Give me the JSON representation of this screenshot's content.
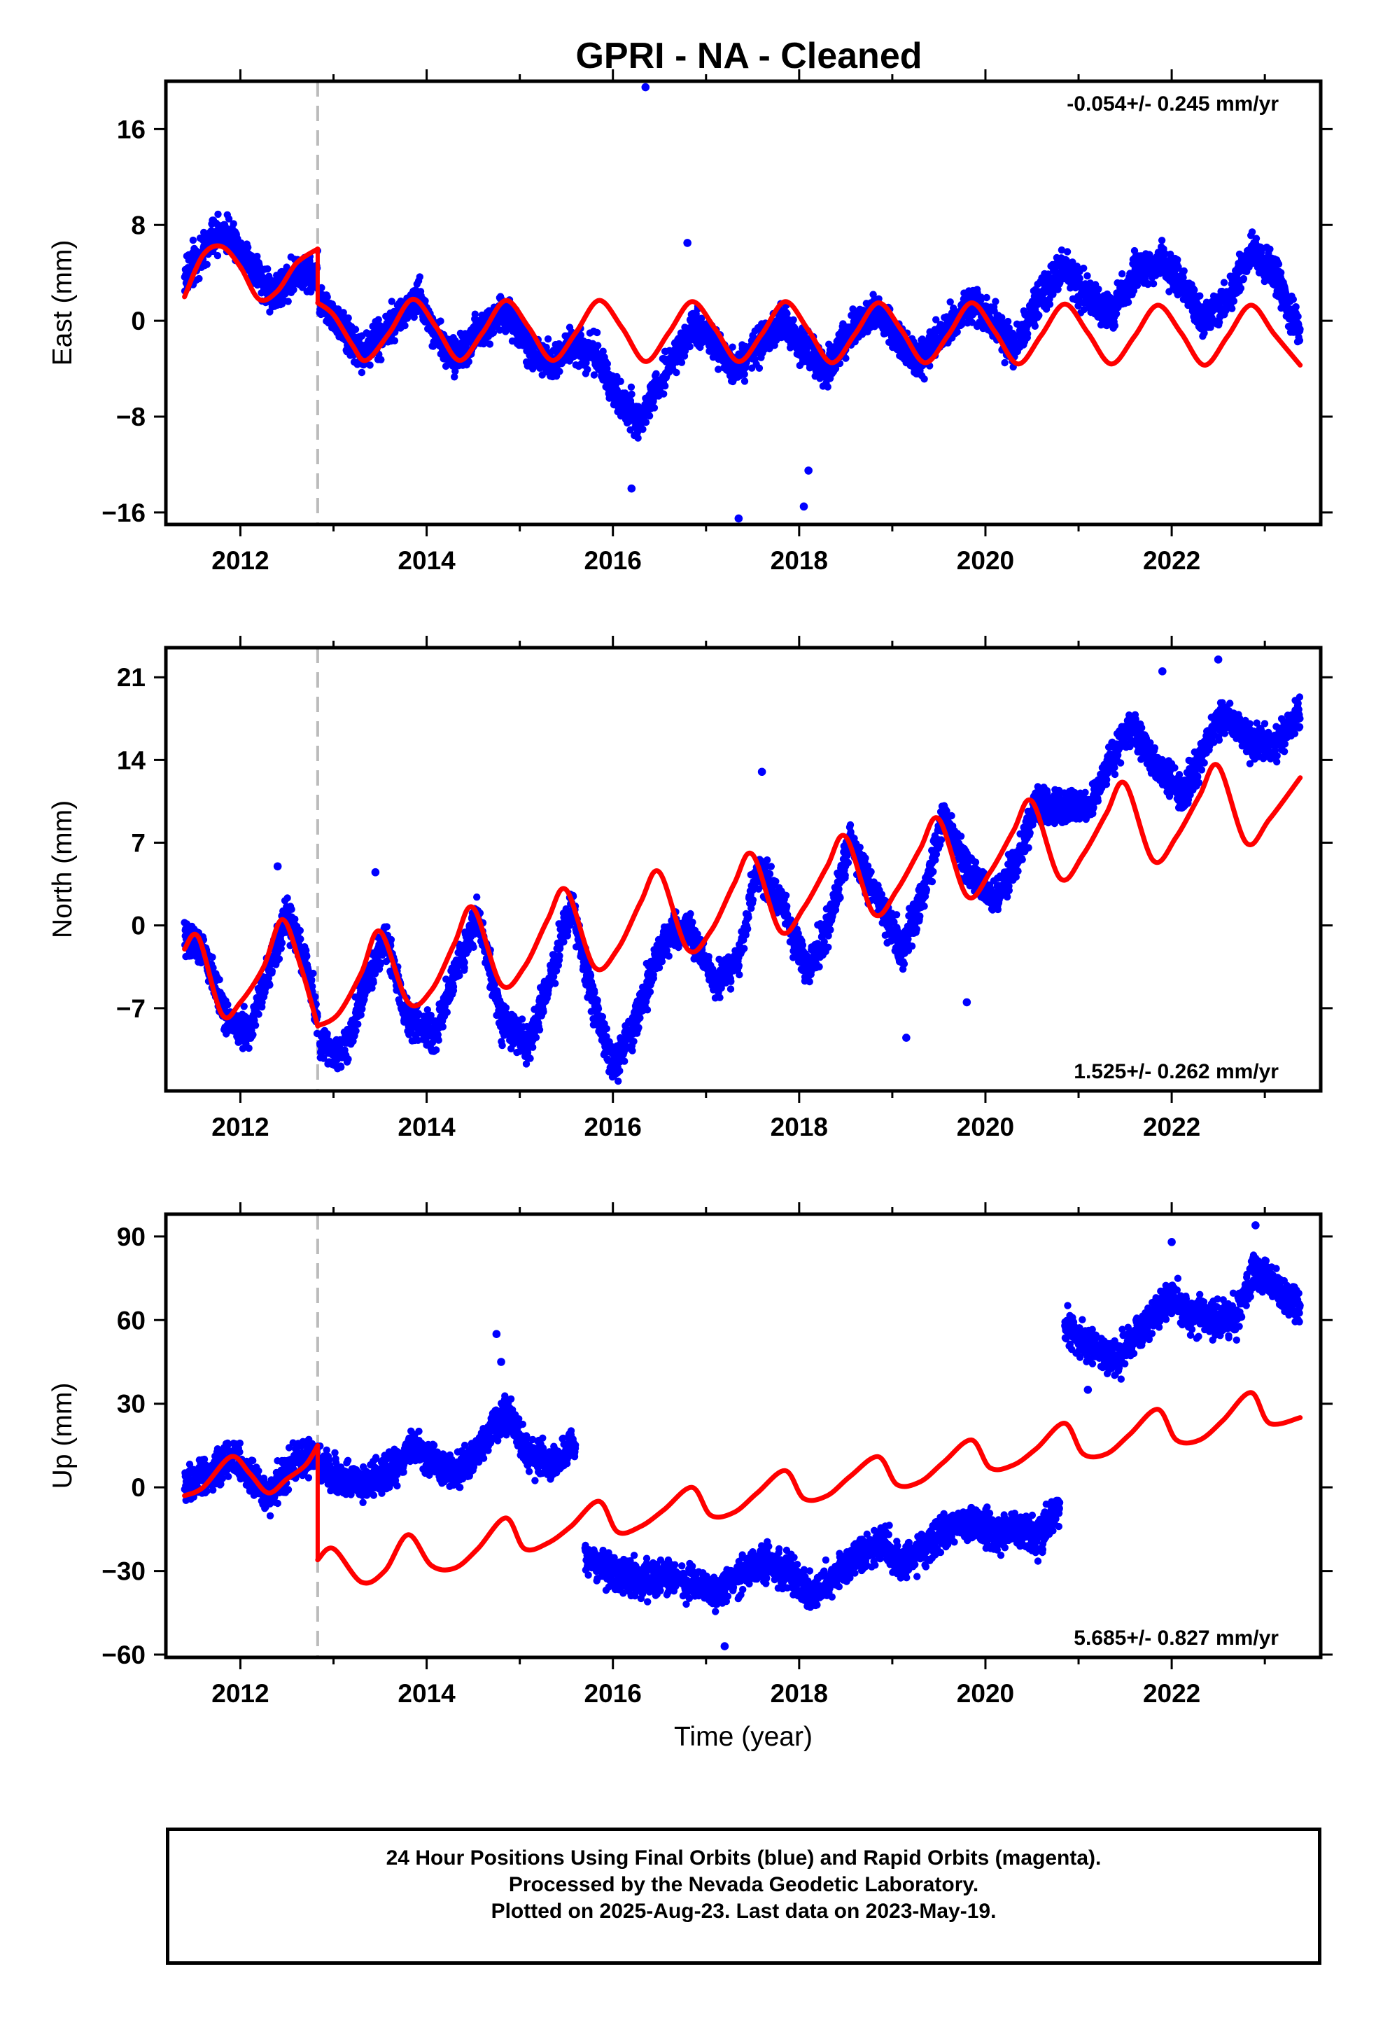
{
  "title": "GPRI  - NA - Cleaned",
  "footer": {
    "line1": "24 Hour Positions Using Final Orbits (blue) and Rapid Orbits (magenta).",
    "line2": "Processed by the Nevada Geodetic Laboratory.",
    "line3": "Plotted on 2025-Aug-23. Last data on 2023-May-19."
  },
  "colors": {
    "data": "#0000ff",
    "model": "#ff0000",
    "offset": "#bbbbbb"
  },
  "chart_data": [
    {
      "type": "scatter",
      "ylabel": "East (mm)",
      "rate_text": "-0.054+/- 0.245 mm/yr",
      "rate_position": "top-right",
      "xlim": [
        2011.2,
        2023.6
      ],
      "ylim": [
        -17,
        20
      ],
      "yticks": [
        -16,
        -8,
        0,
        8,
        16
      ],
      "xticks": [
        2012,
        2014,
        2016,
        2018,
        2020,
        2022
      ],
      "offset_x": 2012.83,
      "series": [
        {
          "role": "data",
          "segments": [
            {
              "x": [
                2011.4,
                2011.7,
                2011.85,
                2012.1,
                2012.35,
                2012.6,
                2012.83
              ],
              "y": [
                3.5,
                7.0,
                7.5,
                5.0,
                2.0,
                4.0,
                4.0
              ]
            },
            {
              "x": [
                2012.85,
                2013.0,
                2013.3,
                2013.6,
                2013.9,
                2014.1,
                2014.3,
                2014.6,
                2014.85,
                2015.1,
                2015.35,
                2015.6,
                2015.85,
                2016.0,
                2016.3,
                2016.5,
                2016.85,
                2017.0,
                2017.3,
                2017.55,
                2017.85,
                2018.0,
                2018.3,
                2018.55,
                2018.85,
                2019.1,
                2019.3,
                2019.55,
                2019.85,
                2020.1,
                2020.3,
                2020.6,
                2020.85,
                2021.1,
                2021.35,
                2021.6,
                2021.85,
                2022.1,
                2022.35,
                2022.6,
                2022.85,
                2023.1,
                2023.38
              ],
              "y": [
                1.5,
                0.5,
                -3.0,
                -0.5,
                2.0,
                -1.0,
                -3.0,
                -0.5,
                1.0,
                -2.5,
                -3.5,
                -2.0,
                -3.0,
                -6.0,
                -8.5,
                -5.0,
                -0.5,
                -1.0,
                -4.0,
                -2.0,
                0.0,
                -2.0,
                -4.0,
                -1.0,
                1.0,
                -2.0,
                -3.5,
                -1.0,
                1.5,
                0.0,
                -2.5,
                2.0,
                4.5,
                2.0,
                0.5,
                4.0,
                5.0,
                3.5,
                0.0,
                2.0,
                6.0,
                4.0,
                -1.0
              ]
            }
          ],
          "outliers": {
            "x": [
              2016.35,
              2016.8,
              2017.35,
              2018.05,
              2018.1,
              2016.2
            ],
            "y": [
              19.5,
              6.5,
              -16.5,
              -15.5,
              -12.5,
              -14.0
            ]
          }
        },
        {
          "role": "model",
          "segments": [
            {
              "x": [
                2011.4,
                2011.6,
                2011.8,
                2012.0,
                2012.2,
                2012.4,
                2012.6,
                2012.83
              ],
              "y": [
                2.0,
                5.5,
                6.2,
                4.5,
                1.8,
                2.5,
                4.8,
                6.0
              ]
            },
            {
              "x": [
                2012.83,
                2013.0,
                2013.2,
                2013.35,
                2013.6,
                2013.85,
                2014.1,
                2014.35,
                2014.6,
                2014.85,
                2015.1,
                2015.35,
                2015.6,
                2015.85,
                2016.1,
                2016.35,
                2016.6,
                2016.85,
                2017.1,
                2017.35,
                2017.6,
                2017.85,
                2018.1,
                2018.35,
                2018.6,
                2018.85,
                2019.1,
                2019.35,
                2019.6,
                2019.85,
                2020.1,
                2020.35,
                2020.6,
                2020.85,
                2021.1,
                2021.35,
                2021.6,
                2021.85,
                2022.1,
                2022.35,
                2022.6,
                2022.85,
                2023.1,
                2023.38
              ],
              "y": [
                1.5,
                0.5,
                -2.0,
                -3.3,
                -1.0,
                1.8,
                -0.5,
                -3.3,
                -1.0,
                1.7,
                -0.6,
                -3.3,
                -1.0,
                1.7,
                -0.6,
                -3.4,
                -1.0,
                1.6,
                -0.7,
                -3.4,
                -1.1,
                1.6,
                -0.8,
                -3.5,
                -1.1,
                1.5,
                -0.8,
                -3.5,
                -1.2,
                1.5,
                -0.9,
                -3.6,
                -1.2,
                1.4,
                -1.0,
                -3.6,
                -1.3,
                1.3,
                -1.0,
                -3.7,
                -1.3,
                1.3,
                -1.1,
                -3.7
              ]
            }
          ]
        }
      ]
    },
    {
      "type": "scatter",
      "ylabel": "North (mm)",
      "rate_text": "1.525+/- 0.262 mm/yr",
      "rate_position": "bottom-right",
      "xlim": [
        2011.2,
        2023.6
      ],
      "ylim": [
        -14,
        23.5
      ],
      "yticks": [
        -7,
        0,
        7,
        14,
        21
      ],
      "xticks": [
        2012,
        2014,
        2016,
        2018,
        2020,
        2022
      ],
      "offset_x": 2012.83,
      "series": [
        {
          "role": "data",
          "segments": [
            {
              "x": [
                2011.4,
                2011.6,
                2011.85,
                2012.1,
                2012.3,
                2012.5,
                2012.7,
                2012.83
              ],
              "y": [
                -1.0,
                -2.0,
                -8.0,
                -9.0,
                -4.0,
                1.0,
                -3.0,
                -8.0
              ]
            },
            {
              "x": [
                2012.85,
                2013.1,
                2013.35,
                2013.55,
                2013.8,
                2014.1,
                2014.35,
                2014.55,
                2014.8,
                2015.1,
                2015.35,
                2015.55,
                2015.8,
                2016.0,
                2016.25,
                2016.55,
                2016.8,
                2017.1,
                2017.35,
                2017.55,
                2017.8,
                2018.1,
                2018.35,
                2018.55,
                2018.8,
                2019.1,
                2019.35,
                2019.55,
                2019.8,
                2020.1,
                2020.3,
                2020.55,
                2020.8,
                2021.1,
                2021.35,
                2021.55,
                2021.8,
                2022.1,
                2022.3,
                2022.55,
                2022.8,
                2023.1,
                2023.38
              ],
              "y": [
                -10.0,
                -11.0,
                -5.0,
                -1.0,
                -8.0,
                -9.0,
                -3.0,
                1.0,
                -8.0,
                -10.0,
                -4.0,
                2.0,
                -7.0,
                -12.0,
                -8.0,
                -1.0,
                0.0,
                -5.0,
                -3.0,
                5.0,
                2.0,
                -4.0,
                1.0,
                7.0,
                3.0,
                -2.0,
                3.0,
                9.0,
                5.0,
                2.0,
                5.0,
                10.0,
                10.0,
                10.0,
                14.0,
                17.0,
                14.0,
                11.0,
                14.0,
                18.0,
                16.0,
                15.0,
                18.0
              ]
            }
          ],
          "outliers": {
            "x": [
              2012.4,
              2013.45,
              2017.6,
              2019.15,
              2019.8,
              2021.9,
              2022.5
            ],
            "y": [
              5.0,
              4.5,
              13.0,
              -9.5,
              -6.5,
              21.5,
              22.5
            ]
          }
        },
        {
          "role": "model",
          "segments": [
            {
              "x": [
                2011.4,
                2011.55,
                2011.8,
                2012.0,
                2012.25,
                2012.45,
                2012.65,
                2012.83
              ],
              "y": [
                -2.0,
                -1.0,
                -7.5,
                -6.5,
                -3.5,
                0.5,
                -3.5,
                -8.5
              ]
            },
            {
              "x": [
                2012.83,
                2013.05,
                2013.3,
                2013.5,
                2013.8,
                2014.05,
                2014.3,
                2014.5,
                2014.8,
                2015.05,
                2015.3,
                2015.5,
                2015.8,
                2016.05,
                2016.3,
                2016.5,
                2016.8,
                2017.05,
                2017.3,
                2017.5,
                2017.8,
                2018.05,
                2018.3,
                2018.5,
                2018.8,
                2019.05,
                2019.3,
                2019.5,
                2019.8,
                2020.05,
                2020.3,
                2020.5,
                2020.8,
                2021.05,
                2021.3,
                2021.5,
                2021.8,
                2022.05,
                2022.3,
                2022.5,
                2022.8,
                2023.05,
                2023.38
              ],
              "y": [
                -8.5,
                -7.5,
                -4.0,
                -0.5,
                -6.5,
                -5.5,
                -1.5,
                1.5,
                -5.0,
                -3.5,
                0.5,
                3.0,
                -3.5,
                -2.0,
                2.0,
                4.5,
                -2.0,
                -0.5,
                3.5,
                6.0,
                -0.5,
                1.5,
                5.0,
                7.5,
                1.0,
                3.0,
                6.5,
                9.0,
                2.5,
                4.5,
                8.0,
                10.5,
                4.0,
                6.0,
                9.5,
                12.0,
                5.5,
                7.5,
                11.0,
                13.5,
                7.0,
                9.0,
                12.5
              ]
            }
          ]
        }
      ]
    },
    {
      "type": "scatter",
      "ylabel": "Up (mm)",
      "xlabel": "Time (year)",
      "rate_text": "5.685+/- 0.827 mm/yr",
      "rate_position": "bottom-right",
      "xlim": [
        2011.2,
        2023.6
      ],
      "ylim": [
        -61,
        98
      ],
      "yticks": [
        -60,
        -30,
        0,
        30,
        60,
        90
      ],
      "xticks": [
        2012,
        2014,
        2016,
        2018,
        2020,
        2022
      ],
      "offset_x": 2012.83,
      "series": [
        {
          "role": "data",
          "segments": [
            {
              "x": [
                2011.4,
                2011.7,
                2011.9,
                2012.1,
                2012.3,
                2012.5,
                2012.7,
                2012.83
              ],
              "y": [
                0,
                5,
                12,
                5,
                -3,
                5,
                12,
                10
              ]
            },
            {
              "x": [
                2012.85,
                2013.1,
                2013.3,
                2013.6,
                2013.85,
                2014.1,
                2014.3,
                2014.5,
                2014.7,
                2014.9,
                2015.1,
                2015.35,
                2015.6
              ],
              "y": [
                8,
                3,
                0,
                5,
                15,
                8,
                5,
                10,
                22,
                25,
                12,
                8,
                15
              ]
            },
            {
              "x": [
                2015.7,
                2016.0,
                2016.3,
                2016.6,
                2016.9,
                2017.1,
                2017.3,
                2017.6,
                2017.9,
                2018.1,
                2018.3,
                2018.6,
                2018.9,
                2019.1,
                2019.3,
                2019.6,
                2019.9,
                2020.1,
                2020.3,
                2020.55,
                2020.8
              ],
              "y": [
                -25,
                -30,
                -33,
                -32,
                -35,
                -38,
                -33,
                -26,
                -30,
                -38,
                -35,
                -25,
                -20,
                -28,
                -22,
                -15,
                -13,
                -18,
                -14,
                -18,
                -8
              ]
            },
            {
              "x": [
                2020.85,
                2021.0,
                2021.2,
                2021.4,
                2021.6,
                2021.8,
                2022.0,
                2022.2,
                2022.45,
                2022.7,
                2022.9,
                2023.1,
                2023.38
              ],
              "y": [
                58,
                55,
                50,
                45,
                55,
                62,
                68,
                62,
                60,
                62,
                78,
                72,
                65
              ]
            }
          ],
          "outliers": {
            "x": [
              2014.75,
              2014.8,
              2021.1,
              2022.0,
              2022.9,
              2017.2
            ],
            "y": [
              55,
              45,
              35,
              88,
              94,
              -57
            ]
          }
        },
        {
          "role": "model",
          "segments": [
            {
              "x": [
                2011.4,
                2011.6,
                2011.9,
                2012.1,
                2012.3,
                2012.5,
                2012.7,
                2012.83
              ],
              "y": [
                -3,
                0,
                11,
                5,
                -2,
                3,
                8,
                15
              ]
            },
            {
              "x": [
                2012.83,
                2013.0,
                2013.3,
                2013.55,
                2013.8,
                2014.05,
                2014.3,
                2014.55,
                2014.85,
                2015.05,
                2015.3,
                2015.55,
                2015.85,
                2016.05,
                2016.3,
                2016.55,
                2016.85,
                2017.05,
                2017.3,
                2017.55,
                2017.85,
                2018.05,
                2018.3,
                2018.55,
                2018.85,
                2019.05,
                2019.3,
                2019.55,
                2019.85,
                2020.05,
                2020.3,
                2020.55,
                2020.85,
                2021.05,
                2021.3,
                2021.55,
                2021.85,
                2022.05,
                2022.3,
                2022.55,
                2022.85,
                2023.05,
                2023.38
              ],
              "y": [
                -26,
                -22,
                -34,
                -30,
                -17,
                -28,
                -29,
                -22,
                -11,
                -22,
                -20,
                -14,
                -5,
                -16,
                -14,
                -8,
                0,
                -10,
                -9,
                -2,
                6,
                -4,
                -3,
                4,
                11,
                1,
                2,
                9,
                17,
                7,
                8,
                14,
                23,
                12,
                12,
                19,
                28,
                17,
                17,
                24,
                34,
                23,
                25
              ]
            }
          ]
        }
      ]
    }
  ]
}
